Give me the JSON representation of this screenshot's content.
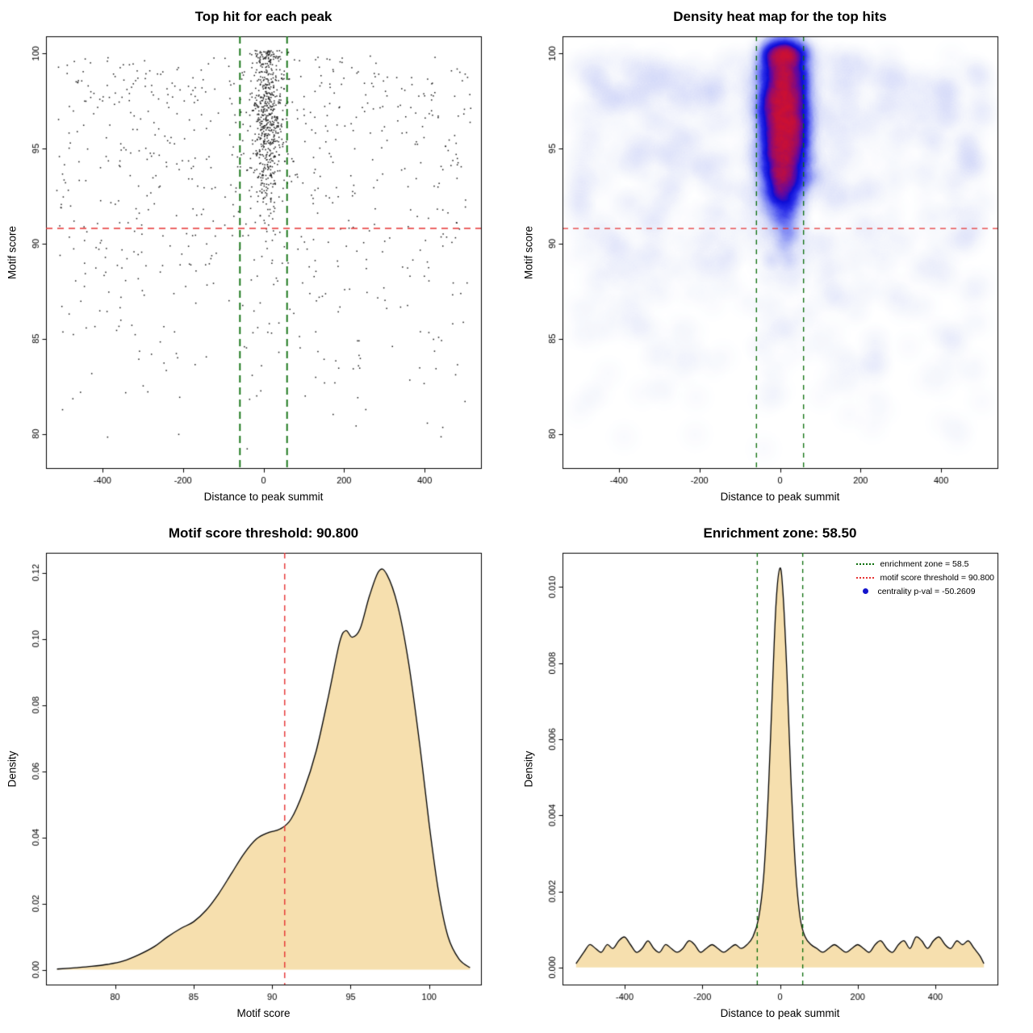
{
  "page": {
    "background": "#ffffff"
  },
  "chart_data": [
    {
      "type": "scatter",
      "title": "Top hit for each peak",
      "xlabel": "Distance to peak summit",
      "ylabel": "Motif score",
      "xlim": [
        -540,
        540
      ],
      "ylim": [
        78.2,
        100.9
      ],
      "xticks": [
        -400,
        -200,
        0,
        200,
        400
      ],
      "xtick_labels": [
        "-400",
        "-200",
        "0",
        "200",
        "400"
      ],
      "yticks": [
        80,
        85,
        90,
        95,
        100
      ],
      "ytick_labels": [
        "80",
        "85",
        "90",
        "95",
        "100"
      ],
      "point_color": "#1a1a1a",
      "motif_score_threshold": 90.8,
      "enrichment_zone": [
        -58.5,
        58.5
      ],
      "threshold_color": "#e63232",
      "zone_color": "#0b6e0b",
      "scatter_model": {
        "background": {
          "n": 720,
          "x_range": [
            -515,
            515
          ],
          "y_min": 78.6,
          "y_span": 21.6,
          "y_skew_exp": 0.48
        },
        "cluster": {
          "n": 600,
          "x_mean": 12,
          "x_sd": 21,
          "y_mean": 96.6,
          "y_sd": 2.6,
          "y_max": 100.15
        }
      }
    },
    {
      "type": "heatmap",
      "title": "Density heat map for the top hits",
      "xlabel": "Distance to peak summit",
      "ylabel": "Motif score",
      "xlim": [
        -540,
        540
      ],
      "ylim": [
        78.2,
        100.9
      ],
      "xticks": [
        -400,
        -200,
        0,
        200,
        400
      ],
      "xtick_labels": [
        "-400",
        "-200",
        "0",
        "200",
        "400"
      ],
      "yticks": [
        80,
        85,
        90,
        95,
        100
      ],
      "ytick_labels": [
        "80",
        "85",
        "90",
        "95",
        "100"
      ],
      "motif_score_threshold": 90.8,
      "enrichment_zone": [
        -58.5,
        58.5
      ],
      "threshold_color": "#e63232",
      "zone_color": "#0b6e0b",
      "palette": [
        "#ffffff",
        "#aab0f5",
        "#1212d7",
        "#e61216"
      ],
      "hotspot": {
        "x": 12,
        "y": 96.8
      }
    },
    {
      "type": "area",
      "title": "Motif score threshold: 90.800",
      "xlabel": "Motif score",
      "ylabel": "Density",
      "xlim": [
        75.6,
        103.3
      ],
      "ylim": [
        -0.0045,
        0.126
      ],
      "xticks": [
        80,
        85,
        90,
        95,
        100
      ],
      "xtick_labels": [
        "80",
        "85",
        "90",
        "95",
        "100"
      ],
      "yticks": [
        0,
        0.02,
        0.04,
        0.06,
        0.08,
        0.1,
        0.12
      ],
      "ytick_labels": [
        "0.00",
        "0.02",
        "0.04",
        "0.06",
        "0.08",
        "0.10",
        "0.12"
      ],
      "fill_color": "#f6dfae",
      "line_color": "#000000",
      "threshold": 90.8,
      "threshold_color": "#e63232",
      "curve": [
        [
          76.3,
          0.0002
        ],
        [
          77.5,
          0.0006
        ],
        [
          78.5,
          0.001
        ],
        [
          79.5,
          0.0016
        ],
        [
          80.5,
          0.0026
        ],
        [
          81.5,
          0.0045
        ],
        [
          82.5,
          0.007
        ],
        [
          83.3,
          0.0098
        ],
        [
          84.2,
          0.0125
        ],
        [
          85.0,
          0.0145
        ],
        [
          85.8,
          0.018
        ],
        [
          86.6,
          0.023
        ],
        [
          87.4,
          0.029
        ],
        [
          88.2,
          0.035
        ],
        [
          89.0,
          0.0395
        ],
        [
          89.8,
          0.0415
        ],
        [
          90.5,
          0.0425
        ],
        [
          91.2,
          0.0455
        ],
        [
          92.0,
          0.054
        ],
        [
          92.8,
          0.066
        ],
        [
          93.6,
          0.083
        ],
        [
          94.3,
          0.099
        ],
        [
          94.7,
          0.1025
        ],
        [
          95.1,
          0.1005
        ],
        [
          95.6,
          0.103
        ],
        [
          96.2,
          0.113
        ],
        [
          96.8,
          0.1205
        ],
        [
          97.3,
          0.1195
        ],
        [
          98.0,
          0.11
        ],
        [
          98.7,
          0.0925
        ],
        [
          99.4,
          0.068
        ],
        [
          100.0,
          0.044
        ],
        [
          100.6,
          0.0235
        ],
        [
          101.2,
          0.01
        ],
        [
          101.9,
          0.0032
        ],
        [
          102.6,
          0.0006
        ]
      ]
    },
    {
      "type": "area",
      "title": "Enrichment zone: 58.50",
      "xlabel": "Distance to peak summit",
      "ylabel": "Density",
      "xlim": [
        -560,
        560
      ],
      "ylim": [
        -0.00045,
        0.0109
      ],
      "xticks": [
        -400,
        -200,
        0,
        200,
        400
      ],
      "xtick_labels": [
        "-400",
        "-200",
        "0",
        "200",
        "400"
      ],
      "yticks": [
        0,
        0.002,
        0.004,
        0.006,
        0.008,
        0.01
      ],
      "ytick_labels": [
        "0.000",
        "0.002",
        "0.004",
        "0.006",
        "0.008",
        "0.010"
      ],
      "fill_color": "#f6dfae",
      "line_color": "#000000",
      "enrichment_zone": [
        -58.5,
        58.5
      ],
      "zone_color": "#0b6e0b",
      "legend": [
        {
          "label": "enrichment zone = 58.5",
          "color": "#0b6e0b",
          "marker": "dotted-line"
        },
        {
          "label": "motif score threshold = 90.800",
          "color": "#e63232",
          "marker": "dotted-line"
        },
        {
          "label": "centrality p-val = -50.2609",
          "color": "#1414cc",
          "marker": "dot"
        }
      ],
      "curve": [
        [
          -525,
          0.0001
        ],
        [
          -505,
          0.0004
        ],
        [
          -490,
          0.0006
        ],
        [
          -475,
          0.0005
        ],
        [
          -460,
          0.0004
        ],
        [
          -445,
          0.0006
        ],
        [
          -430,
          0.0005
        ],
        [
          -415,
          0.0007
        ],
        [
          -400,
          0.0008
        ],
        [
          -385,
          0.0006
        ],
        [
          -370,
          0.0004
        ],
        [
          -355,
          0.0005
        ],
        [
          -340,
          0.0007
        ],
        [
          -325,
          0.0005
        ],
        [
          -310,
          0.0004
        ],
        [
          -295,
          0.0006
        ],
        [
          -280,
          0.0005
        ],
        [
          -265,
          0.0004
        ],
        [
          -250,
          0.0005
        ],
        [
          -235,
          0.0007
        ],
        [
          -220,
          0.0006
        ],
        [
          -205,
          0.0004
        ],
        [
          -190,
          0.0005
        ],
        [
          -175,
          0.0006
        ],
        [
          -160,
          0.0005
        ],
        [
          -145,
          0.0004
        ],
        [
          -130,
          0.0005
        ],
        [
          -115,
          0.0006
        ],
        [
          -100,
          0.0005
        ],
        [
          -85,
          0.0006
        ],
        [
          -70,
          0.0008
        ],
        [
          -55,
          0.0013
        ],
        [
          -42,
          0.0024
        ],
        [
          -30,
          0.0046
        ],
        [
          -20,
          0.0072
        ],
        [
          -10,
          0.0096
        ],
        [
          0,
          0.0105
        ],
        [
          8,
          0.0098
        ],
        [
          18,
          0.0077
        ],
        [
          28,
          0.005
        ],
        [
          40,
          0.0026
        ],
        [
          52,
          0.0013
        ],
        [
          65,
          0.0008
        ],
        [
          80,
          0.0006
        ],
        [
          95,
          0.0005
        ],
        [
          110,
          0.0004
        ],
        [
          125,
          0.0005
        ],
        [
          140,
          0.0006
        ],
        [
          155,
          0.0005
        ],
        [
          170,
          0.0004
        ],
        [
          185,
          0.0005
        ],
        [
          200,
          0.0006
        ],
        [
          215,
          0.0005
        ],
        [
          230,
          0.0004
        ],
        [
          245,
          0.0006
        ],
        [
          260,
          0.0007
        ],
        [
          275,
          0.0005
        ],
        [
          290,
          0.0004
        ],
        [
          305,
          0.0006
        ],
        [
          320,
          0.0007
        ],
        [
          335,
          0.0005
        ],
        [
          350,
          0.0008
        ],
        [
          365,
          0.0007
        ],
        [
          380,
          0.0005
        ],
        [
          395,
          0.0007
        ],
        [
          410,
          0.0008
        ],
        [
          425,
          0.0006
        ],
        [
          440,
          0.0005
        ],
        [
          455,
          0.0007
        ],
        [
          470,
          0.0006
        ],
        [
          485,
          0.0007
        ],
        [
          500,
          0.0005
        ],
        [
          515,
          0.0003
        ],
        [
          525,
          0.0001
        ]
      ]
    }
  ]
}
